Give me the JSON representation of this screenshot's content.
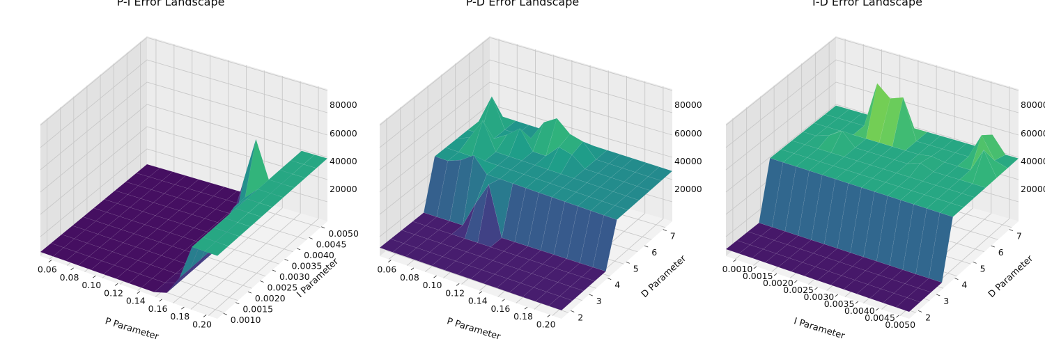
{
  "chart_data": [
    {
      "type": "surface3d",
      "title": "P-I Error Landscape",
      "xlabel": "P Parameter",
      "ylabel": "I Parameter",
      "zlabel": "",
      "x_ticks": [
        "0.06",
        "0.08",
        "0.10",
        "0.12",
        "0.14",
        "0.16",
        "0.18",
        "0.20"
      ],
      "y_ticks": [
        "0.0010",
        "0.0015",
        "0.0020",
        "0.0025",
        "0.0030",
        "0.0035",
        "0.0040",
        "0.0045",
        "0.0050"
      ],
      "z_ticks": [
        "20000",
        "40000",
        "60000",
        "80000"
      ],
      "xlim": [
        0.05,
        0.2
      ],
      "ylim": [
        0.001,
        0.005
      ],
      "zlim": [
        5000,
        92000
      ],
      "colormap": "viridis",
      "grid": true,
      "surface": {
        "baseline": 8000,
        "plateau_value": 50000,
        "plateau_region": "P > 0.17",
        "spikes": [
          {
            "p": 0.165,
            "i": 0.0038,
            "z": 80000
          },
          {
            "p": 0.17,
            "i": 0.0032,
            "z": 60000
          },
          {
            "p": 0.16,
            "i": 0.0044,
            "z": 55000
          },
          {
            "p": 0.175,
            "i": 0.0026,
            "z": 45000
          }
        ]
      }
    },
    {
      "type": "surface3d",
      "title": "P-D Error Landscape",
      "xlabel": "P Parameter",
      "ylabel": "D Parameter",
      "zlabel": "",
      "x_ticks": [
        "0.06",
        "0.08",
        "0.10",
        "0.12",
        "0.14",
        "0.16",
        "0.18",
        "0.20"
      ],
      "y_ticks": [
        "2",
        "3",
        "4",
        "5",
        "6",
        "7"
      ],
      "z_ticks": [
        "20000",
        "40000",
        "60000",
        "80000"
      ],
      "xlim": [
        0.05,
        0.2
      ],
      "ylim": [
        1.8,
        7.2
      ],
      "zlim": [
        5000,
        92000
      ],
      "colormap": "viridis",
      "grid": true,
      "surface": {
        "baseline": 8000,
        "plateau_value": 45000,
        "plateau_region": "D > 4",
        "spikes": [
          {
            "p": 0.06,
            "d": 6.5,
            "z": 70000
          },
          {
            "p": 0.07,
            "d": 5.5,
            "z": 65000
          },
          {
            "p": 0.09,
            "d": 6.0,
            "z": 60000
          },
          {
            "p": 0.11,
            "d": 6.8,
            "z": 72000
          },
          {
            "p": 0.13,
            "d": 6.4,
            "z": 80000
          },
          {
            "p": 0.08,
            "d": 4.5,
            "z": 55000
          },
          {
            "p": 0.1,
            "d": 3.8,
            "z": 60000
          }
        ]
      }
    },
    {
      "type": "surface3d",
      "title": "I-D Error Landscape",
      "xlabel": "I Parameter",
      "ylabel": "D Parameter",
      "zlabel": "",
      "x_ticks": [
        "0.0010",
        "0.0015",
        "0.0020",
        "0.0025",
        "0.0030",
        "0.0035",
        "0.0040",
        "0.0045",
        "0.0050"
      ],
      "y_ticks": [
        "2",
        "3",
        "4",
        "5",
        "6",
        "7"
      ],
      "z_ticks": [
        "20000",
        "40000",
        "60000",
        "80000"
      ],
      "xlim": [
        0.001,
        0.005
      ],
      "ylim": [
        1.8,
        7.2
      ],
      "zlim": [
        5000,
        92000
      ],
      "colormap": "viridis",
      "grid": true,
      "surface": {
        "baseline": 8000,
        "plateau_value": 50000,
        "plateau_region": "D > 3.5",
        "spikes": [
          {
            "i": 0.0022,
            "d": 6.8,
            "z": 90000
          },
          {
            "i": 0.0026,
            "d": 6.6,
            "z": 85000
          },
          {
            "i": 0.0044,
            "d": 6.9,
            "z": 80000
          },
          {
            "i": 0.0047,
            "d": 6.3,
            "z": 72000
          },
          {
            "i": 0.0018,
            "d": 5.5,
            "z": 60000
          },
          {
            "i": 0.0036,
            "d": 5.8,
            "z": 55000
          }
        ]
      }
    }
  ]
}
